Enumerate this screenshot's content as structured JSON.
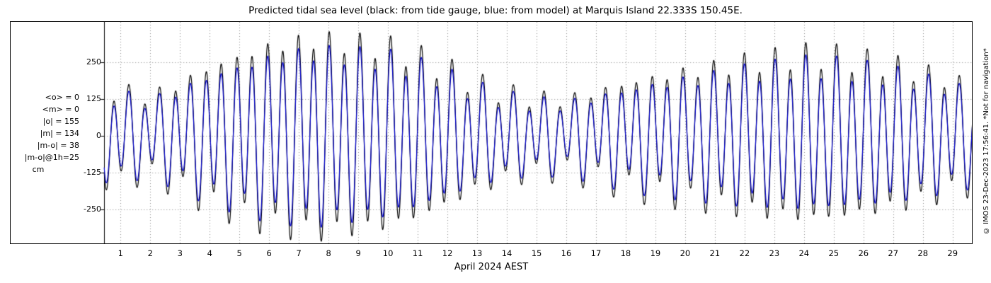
{
  "title": "Predicted tidal sea level (black: from tide gauge, blue: from model) at Marquis Island 22.333S 150.45E.",
  "watermark": "© IMOS 23-Dec-2023 17:56:41. *Not for navigation*",
  "stats": {
    "lines": [
      "<o> = 0",
      "<m> = 0",
      "|o| = 155",
      "|m| = 134",
      "|m-o| = 38",
      "|m-o|@1h=25",
      "cm"
    ]
  },
  "chart_data": {
    "type": "line",
    "title": "Predicted tidal sea level (black: from tide gauge, blue: from model) at Marquis Island 22.333S 150.45E.",
    "xlabel": "April 2024 AEST",
    "ylabel": "cm",
    "grid": "dotted",
    "grid_color": "#888888",
    "yticks": [
      250,
      125,
      0,
      -125,
      -250
    ],
    "xticks": [
      1,
      2,
      3,
      4,
      5,
      6,
      7,
      8,
      9,
      10,
      11,
      12,
      13,
      14,
      15,
      16,
      17,
      18,
      19,
      20,
      21,
      22,
      23,
      24,
      25,
      26,
      27,
      28,
      29
    ],
    "ylim_cm": [
      -365,
      388
    ],
    "xlim_days": [
      -2.7,
      29.65
    ],
    "t_range_days": [
      0.45,
      29.72
    ],
    "semidiurnal": {
      "cycles_per_day": 1.9323,
      "phase_rad": -3.09
    },
    "diurnal": {
      "cycles_per_day": 1.0027,
      "phase_rad": -1.0
    },
    "envelope_cm_by_day": [
      [
        0.45,
        155
      ],
      [
        1,
        150
      ],
      [
        2,
        130
      ],
      [
        3,
        175
      ],
      [
        4,
        230
      ],
      [
        5,
        265
      ],
      [
        6,
        300
      ],
      [
        7,
        318
      ],
      [
        7.6,
        326
      ],
      [
        8,
        322
      ],
      [
        9,
        312
      ],
      [
        10,
        300
      ],
      [
        11,
        268
      ],
      [
        12,
        225
      ],
      [
        13,
        175
      ],
      [
        14,
        142
      ],
      [
        15,
        126
      ],
      [
        16,
        120
      ],
      [
        17,
        146
      ],
      [
        18,
        175
      ],
      [
        19,
        196
      ],
      [
        20,
        214
      ],
      [
        21,
        230
      ],
      [
        22,
        248
      ],
      [
        23,
        260
      ],
      [
        24,
        274
      ],
      [
        25,
        270
      ],
      [
        26,
        255
      ],
      [
        27,
        238
      ],
      [
        28,
        214
      ],
      [
        29,
        186
      ],
      [
        29.72,
        166
      ]
    ],
    "series": [
      {
        "name": "tide gauge",
        "color": "#000000",
        "scale": 1.0,
        "diurnal_amplitude_cm": 45
      },
      {
        "name": "model",
        "color": "#0000cc",
        "scale": 0.865,
        "diurnal_amplitude_cm": 40
      }
    ]
  }
}
